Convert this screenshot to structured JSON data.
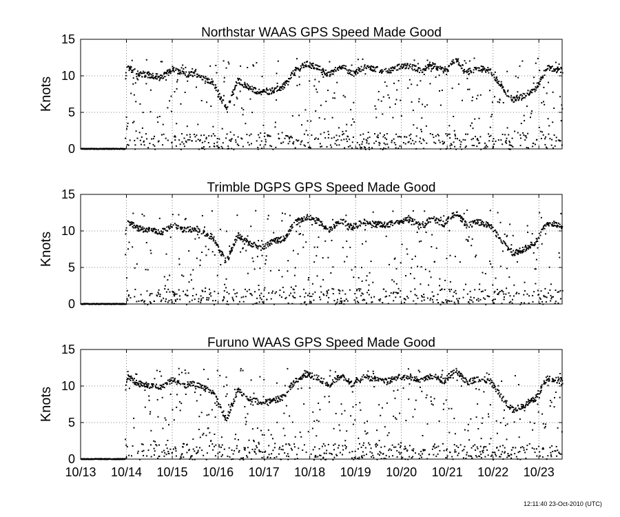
{
  "timestamp": "12:11:40 23-Oct-2010 (UTC)",
  "chart_data": [
    {
      "type": "scatter",
      "title": "Northstar WAAS GPS Speed Made Good",
      "ylabel": "Knots",
      "ylim": [
        0,
        15
      ],
      "yticks": [
        0,
        5,
        10,
        15
      ],
      "xlim": [
        "2010-10-13",
        "2010-10-23 12:11"
      ],
      "xtick_labels": [
        "10/13",
        "10/14",
        "10/15",
        "10/16",
        "10/17",
        "10/18",
        "10/19",
        "10/20",
        "10/21",
        "10/22",
        "10/23"
      ],
      "grid": true,
      "marker": "dot",
      "series": [
        {
          "cruise_speed": [
            [
              "2010-10-13 10:00",
              0.1
            ],
            [
              "2010-10-13 18:00",
              0.1
            ],
            [
              "2010-10-14 00:00",
              11.3
            ],
            [
              "2010-10-14 06:00",
              10.4
            ],
            [
              "2010-10-14 12:00",
              10.2
            ],
            [
              "2010-10-14 18:00",
              9.9
            ],
            [
              "2010-10-15 00:00",
              11.0
            ],
            [
              "2010-10-15 06:00",
              10.2
            ],
            [
              "2010-10-15 12:00",
              10.4
            ],
            [
              "2010-10-15 21:00",
              9.2
            ],
            [
              "2010-10-16 04:00",
              5.5
            ],
            [
              "2010-10-16 10:00",
              9.5
            ],
            [
              "2010-10-16 16:00",
              8.4
            ],
            [
              "2010-10-16 22:00",
              7.8
            ],
            [
              "2010-10-17 04:00",
              8.0
            ],
            [
              "2010-10-17 10:00",
              8.6
            ],
            [
              "2010-10-17 16:00",
              10.8
            ],
            [
              "2010-10-17 22:00",
              11.7
            ],
            [
              "2010-10-18 04:00",
              11.2
            ],
            [
              "2010-10-18 10:00",
              10.2
            ],
            [
              "2010-10-18 16:00",
              11.5
            ],
            [
              "2010-10-18 22:00",
              10.3
            ],
            [
              "2010-10-19 04:00",
              11.3
            ],
            [
              "2010-10-19 10:00",
              11.0
            ],
            [
              "2010-10-19 16:00",
              10.7
            ],
            [
              "2010-10-19 22:00",
              11.3
            ],
            [
              "2010-10-20 04:00",
              11.4
            ],
            [
              "2010-10-20 10:00",
              10.8
            ],
            [
              "2010-10-20 16:00",
              11.5
            ],
            [
              "2010-10-20 22:00",
              10.8
            ],
            [
              "2010-10-21 04:00",
              12.2
            ],
            [
              "2010-10-21 10:00",
              10.6
            ],
            [
              "2010-10-21 16:00",
              11.1
            ],
            [
              "2010-10-21 22:00",
              10.8
            ],
            [
              "2010-10-22 04:00",
              8.6
            ],
            [
              "2010-10-22 10:00",
              6.8
            ],
            [
              "2010-10-22 16:00",
              7.4
            ],
            [
              "2010-10-22 22:00",
              8.4
            ],
            [
              "2010-10-23 04:00",
              11.2
            ],
            [
              "2010-10-23 12:00",
              10.8
            ]
          ],
          "scatter_range": [
            0,
            12.5
          ]
        }
      ]
    },
    {
      "type": "scatter",
      "title": "Trimble DGPS GPS Speed Made Good",
      "ylabel": "Knots",
      "ylim": [
        0,
        15
      ],
      "yticks": [
        0,
        5,
        10,
        15
      ],
      "xlim": [
        "2010-10-13",
        "2010-10-23 12:11"
      ],
      "xtick_labels": [
        "10/13",
        "10/14",
        "10/15",
        "10/16",
        "10/17",
        "10/18",
        "10/19",
        "10/20",
        "10/21",
        "10/22",
        "10/23"
      ],
      "grid": true,
      "marker": "dot",
      "series": [
        {
          "cruise_speed": [
            [
              "2010-10-13 10:00",
              0.1
            ],
            [
              "2010-10-13 18:00",
              0.1
            ],
            [
              "2010-10-14 00:00",
              11.3
            ],
            [
              "2010-10-14 06:00",
              10.4
            ],
            [
              "2010-10-14 12:00",
              10.2
            ],
            [
              "2010-10-14 18:00",
              9.9
            ],
            [
              "2010-10-15 00:00",
              11.0
            ],
            [
              "2010-10-15 06:00",
              10.2
            ],
            [
              "2010-10-15 12:00",
              10.4
            ],
            [
              "2010-10-15 21:00",
              9.2
            ],
            [
              "2010-10-16 04:00",
              5.8
            ],
            [
              "2010-10-16 10:00",
              9.5
            ],
            [
              "2010-10-16 16:00",
              8.4
            ],
            [
              "2010-10-16 22:00",
              7.8
            ],
            [
              "2010-10-17 04:00",
              8.6
            ],
            [
              "2010-10-17 10:00",
              9.0
            ],
            [
              "2010-10-17 16:00",
              11.2
            ],
            [
              "2010-10-17 22:00",
              12.0
            ],
            [
              "2010-10-18 04:00",
              11.4
            ],
            [
              "2010-10-18 10:00",
              10.2
            ],
            [
              "2010-10-18 16:00",
              11.5
            ],
            [
              "2010-10-18 22:00",
              10.6
            ],
            [
              "2010-10-19 04:00",
              11.3
            ],
            [
              "2010-10-19 10:00",
              11.0
            ],
            [
              "2010-10-19 16:00",
              10.9
            ],
            [
              "2010-10-19 22:00",
              11.4
            ],
            [
              "2010-10-20 04:00",
              11.6
            ],
            [
              "2010-10-20 10:00",
              10.8
            ],
            [
              "2010-10-20 16:00",
              11.8
            ],
            [
              "2010-10-20 22:00",
              11.0
            ],
            [
              "2010-10-21 04:00",
              12.6
            ],
            [
              "2010-10-21 10:00",
              10.8
            ],
            [
              "2010-10-21 16:00",
              11.3
            ],
            [
              "2010-10-21 22:00",
              10.8
            ],
            [
              "2010-10-22 04:00",
              8.8
            ],
            [
              "2010-10-22 10:00",
              7.0
            ],
            [
              "2010-10-22 16:00",
              7.6
            ],
            [
              "2010-10-22 22:00",
              8.6
            ],
            [
              "2010-10-23 04:00",
              11.2
            ],
            [
              "2010-10-23 12:00",
              10.8
            ]
          ],
          "scatter_range": [
            0,
            13
          ]
        }
      ]
    },
    {
      "type": "scatter",
      "title": "Furuno WAAS GPS Speed Made Good",
      "ylabel": "Knots",
      "ylim": [
        0,
        15
      ],
      "yticks": [
        0,
        5,
        10,
        15
      ],
      "xlim": [
        "2010-10-13",
        "2010-10-23 12:11"
      ],
      "xtick_labels": [
        "10/13",
        "10/14",
        "10/15",
        "10/16",
        "10/17",
        "10/18",
        "10/19",
        "10/20",
        "10/21",
        "10/22",
        "10/23"
      ],
      "grid": true,
      "marker": "dot",
      "series": [
        {
          "cruise_speed": [
            [
              "2010-10-13 10:00",
              0.1
            ],
            [
              "2010-10-13 18:00",
              0.1
            ],
            [
              "2010-10-14 00:00",
              11.3
            ],
            [
              "2010-10-14 06:00",
              10.4
            ],
            [
              "2010-10-14 12:00",
              10.2
            ],
            [
              "2010-10-14 18:00",
              9.9
            ],
            [
              "2010-10-15 00:00",
              11.0
            ],
            [
              "2010-10-15 06:00",
              10.2
            ],
            [
              "2010-10-15 12:00",
              10.4
            ],
            [
              "2010-10-15 21:00",
              9.2
            ],
            [
              "2010-10-16 04:00",
              5.5
            ],
            [
              "2010-10-16 10:00",
              9.5
            ],
            [
              "2010-10-16 16:00",
              8.4
            ],
            [
              "2010-10-16 22:00",
              7.8
            ],
            [
              "2010-10-17 04:00",
              8.0
            ],
            [
              "2010-10-17 10:00",
              8.6
            ],
            [
              "2010-10-17 16:00",
              10.8
            ],
            [
              "2010-10-17 22:00",
              11.7
            ],
            [
              "2010-10-18 04:00",
              11.2
            ],
            [
              "2010-10-18 10:00",
              10.2
            ],
            [
              "2010-10-18 16:00",
              11.5
            ],
            [
              "2010-10-18 22:00",
              10.3
            ],
            [
              "2010-10-19 04:00",
              11.3
            ],
            [
              "2010-10-19 10:00",
              11.0
            ],
            [
              "2010-10-19 16:00",
              10.7
            ],
            [
              "2010-10-19 22:00",
              11.3
            ],
            [
              "2010-10-20 04:00",
              11.4
            ],
            [
              "2010-10-20 10:00",
              10.8
            ],
            [
              "2010-10-20 16:00",
              11.5
            ],
            [
              "2010-10-20 22:00",
              10.8
            ],
            [
              "2010-10-21 04:00",
              12.2
            ],
            [
              "2010-10-21 10:00",
              10.6
            ],
            [
              "2010-10-21 16:00",
              11.1
            ],
            [
              "2010-10-21 22:00",
              10.8
            ],
            [
              "2010-10-22 04:00",
              8.6
            ],
            [
              "2010-10-22 10:00",
              6.8
            ],
            [
              "2010-10-22 16:00",
              7.4
            ],
            [
              "2010-10-22 22:00",
              8.4
            ],
            [
              "2010-10-23 04:00",
              11.2
            ],
            [
              "2010-10-23 12:00",
              10.8
            ]
          ],
          "scatter_range": [
            0,
            12.5
          ]
        }
      ]
    }
  ]
}
